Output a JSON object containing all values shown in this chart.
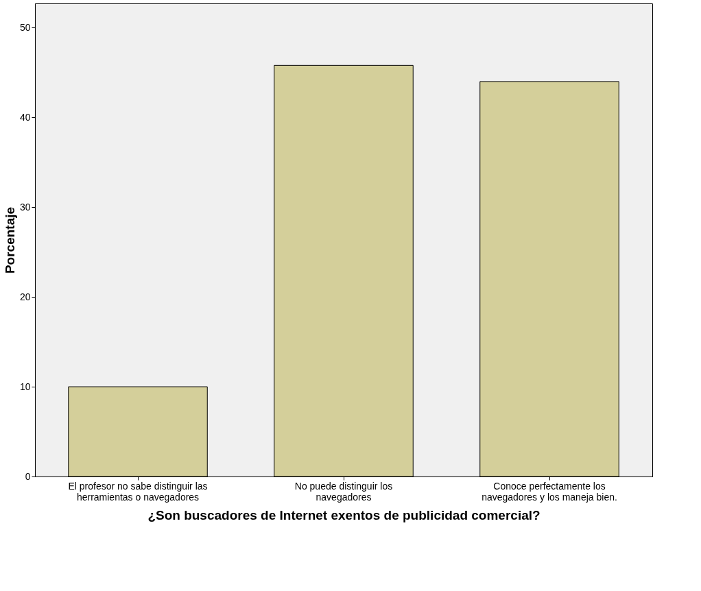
{
  "chart_data": {
    "type": "bar",
    "categories": [
      "El profesor no sabe distinguir las\nherramientas o navegadores",
      "No puede distinguir los\nnavegadores",
      "Conoce perfectamente los\nnavegadores y los maneja bien."
    ],
    "values": [
      10,
      45.8,
      44
    ],
    "color": "#d4cf9a",
    "xlabel": "¿Son buscadores de Internet exentos de publicidad comercial?",
    "ylabel": "Porcentaje",
    "ylim": [
      0,
      52.7
    ],
    "yticks": [
      0,
      10,
      20,
      30,
      40,
      50
    ],
    "grid": false
  }
}
